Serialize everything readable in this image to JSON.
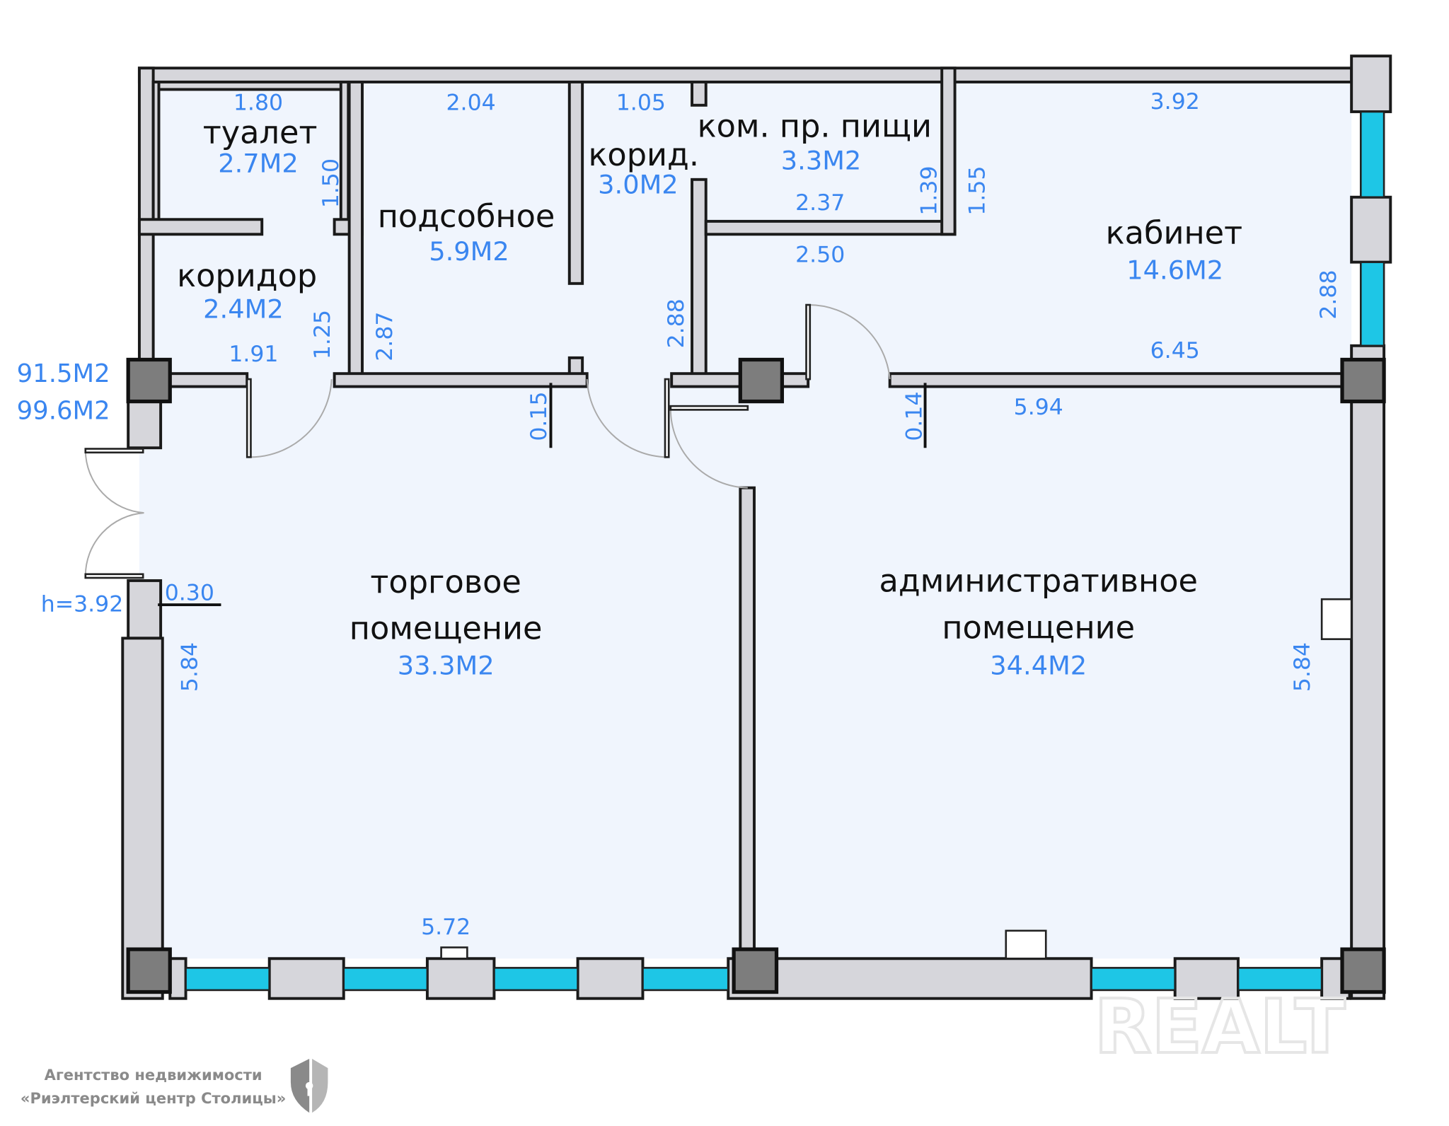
{
  "rooms": [
    {
      "name": "туалет",
      "area": "2.7М2"
    },
    {
      "name": "коридор",
      "area": "2.4М2"
    },
    {
      "name": "подсобное",
      "area": "5.9М2"
    },
    {
      "name": "корид.",
      "area": "3.0М2"
    },
    {
      "name": "ком. пр. пищи",
      "area": "3.3М2"
    },
    {
      "name": "кабинет",
      "area": "14.6М2"
    },
    {
      "name_line1": "торговое",
      "name_line2": "помещение",
      "area": "33.3М2"
    },
    {
      "name_line1": "административное",
      "name_line2": "помещение",
      "area": "34.4М2"
    }
  ],
  "dimensions": [
    "1.80",
    "1.50",
    "2.04",
    "1.05",
    "2.37",
    "1.39",
    "1.55",
    "3.92",
    "2.50",
    "2.88",
    "1.91",
    "1.25",
    "2.87",
    "2.88",
    "6.45",
    "5.94",
    "0.15",
    "0.14",
    "0.30",
    "5.84",
    "5.84",
    "5.72"
  ],
  "totals": {
    "living_area": "91.5М2",
    "total_area": "99.6М2",
    "height": "h=3.92"
  },
  "logo": {
    "line1": "Агентство недвижимости",
    "line2": "«Риэлтерский центр Столицы»"
  },
  "watermark": "REALT",
  "colors": {
    "room_fill": "#f0f5fd",
    "wall": "#d6d6db",
    "window": "#1ec6e6",
    "label_blue": "#3a86f0"
  }
}
